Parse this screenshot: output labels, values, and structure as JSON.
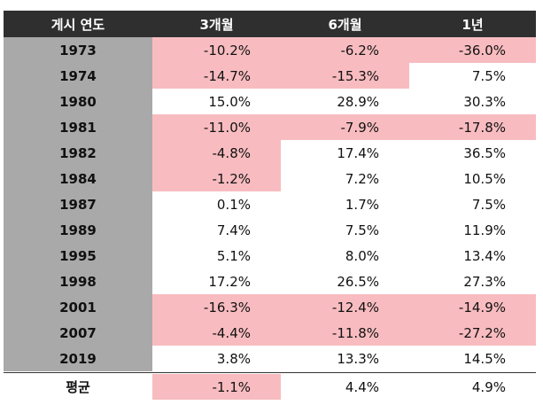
{
  "table": {
    "headers": [
      "게시 연도",
      "3개월",
      "6개월",
      "1년"
    ],
    "rows": [
      {
        "year": "1973",
        "m3": "-10.2%",
        "m6": "-6.2%",
        "y1": "-36.0%",
        "neg": [
          true,
          true,
          true
        ]
      },
      {
        "year": "1974",
        "m3": "-14.7%",
        "m6": "-15.3%",
        "y1": "7.5%",
        "neg": [
          true,
          true,
          false
        ]
      },
      {
        "year": "1980",
        "m3": "15.0%",
        "m6": "28.9%",
        "y1": "30.3%",
        "neg": [
          false,
          false,
          false
        ]
      },
      {
        "year": "1981",
        "m3": "-11.0%",
        "m6": "-7.9%",
        "y1": "-17.8%",
        "neg": [
          true,
          true,
          true
        ]
      },
      {
        "year": "1982",
        "m3": "-4.8%",
        "m6": "17.4%",
        "y1": "36.5%",
        "neg": [
          true,
          false,
          false
        ]
      },
      {
        "year": "1984",
        "m3": "-1.2%",
        "m6": "7.2%",
        "y1": "10.5%",
        "neg": [
          true,
          false,
          false
        ]
      },
      {
        "year": "1987",
        "m3": "0.1%",
        "m6": "1.7%",
        "y1": "7.5%",
        "neg": [
          false,
          false,
          false
        ]
      },
      {
        "year": "1989",
        "m3": "7.4%",
        "m6": "7.5%",
        "y1": "11.9%",
        "neg": [
          false,
          false,
          false
        ]
      },
      {
        "year": "1995",
        "m3": "5.1%",
        "m6": "8.0%",
        "y1": "13.4%",
        "neg": [
          false,
          false,
          false
        ]
      },
      {
        "year": "1998",
        "m3": "17.2%",
        "m6": "26.5%",
        "y1": "27.3%",
        "neg": [
          false,
          false,
          false
        ]
      },
      {
        "year": "2001",
        "m3": "-16.3%",
        "m6": "-12.4%",
        "y1": "-14.9%",
        "neg": [
          true,
          true,
          true
        ]
      },
      {
        "year": "2007",
        "m3": "-4.4%",
        "m6": "-11.8%",
        "y1": "-27.2%",
        "neg": [
          true,
          true,
          true
        ]
      },
      {
        "year": "2019",
        "m3": "3.8%",
        "m6": "13.3%",
        "y1": "14.5%",
        "neg": [
          false,
          false,
          false
        ]
      }
    ],
    "average": {
      "label": "평균",
      "m3": "-1.1%",
      "m6": "4.4%",
      "y1": "4.9%",
      "neg": [
        true,
        false,
        false
      ]
    }
  },
  "colors": {
    "header_bg": "#2f2f2f",
    "year_bg": "#a9a9a9",
    "negative_bg": "#f8bcc0"
  }
}
